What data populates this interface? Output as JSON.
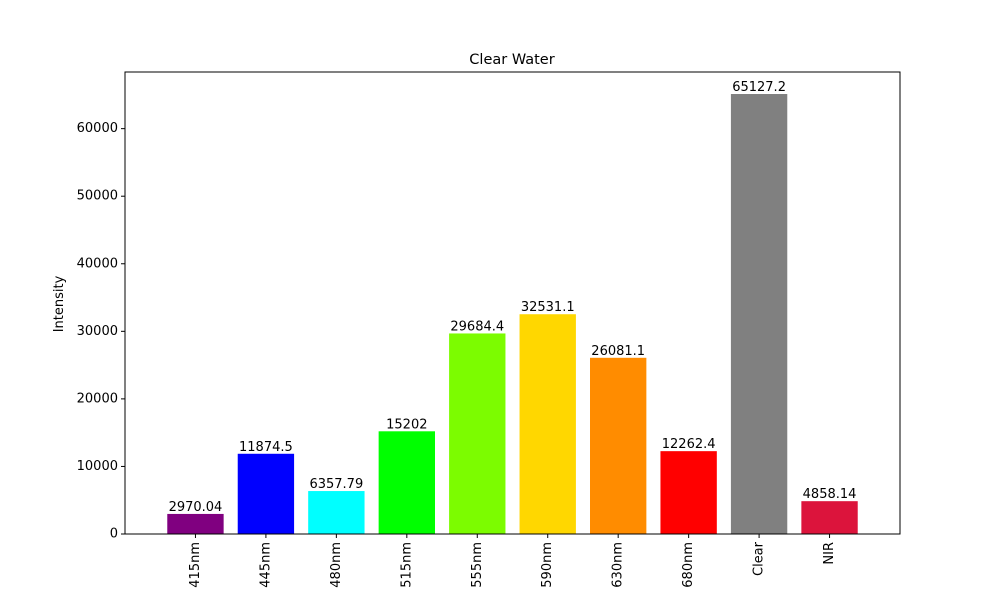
{
  "chart_data": {
    "type": "bar",
    "title": "Clear Water",
    "xlabel": "",
    "ylabel": "Intensity",
    "categories": [
      "415nm",
      "445nm",
      "480nm",
      "515nm",
      "555nm",
      "590nm",
      "630nm",
      "680nm",
      "Clear",
      "NIR"
    ],
    "values": [
      2970.04,
      11874.5,
      6357.79,
      15202,
      29684.4,
      32531.1,
      26081.1,
      12262.4,
      65127.2,
      4858.14
    ],
    "value_labels": [
      "2970.04",
      "11874.5",
      "6357.79",
      "15202",
      "29684.4",
      "32531.1",
      "26081.1",
      "12262.4",
      "65127.2",
      "4858.14"
    ],
    "colors": [
      "#800080",
      "#0000ff",
      "#00ffff",
      "#00ff00",
      "#7cfc00",
      "#ffd700",
      "#ff8c00",
      "#ff0000",
      "#808080",
      "#dc143c"
    ],
    "ylim": [
      0,
      68385
    ],
    "yticks": [
      0,
      10000,
      20000,
      30000,
      40000,
      50000,
      60000
    ],
    "ytick_labels": [
      "0",
      "10000",
      "20000",
      "30000",
      "40000",
      "50000",
      "60000"
    ],
    "grid": false,
    "legend": "none"
  }
}
